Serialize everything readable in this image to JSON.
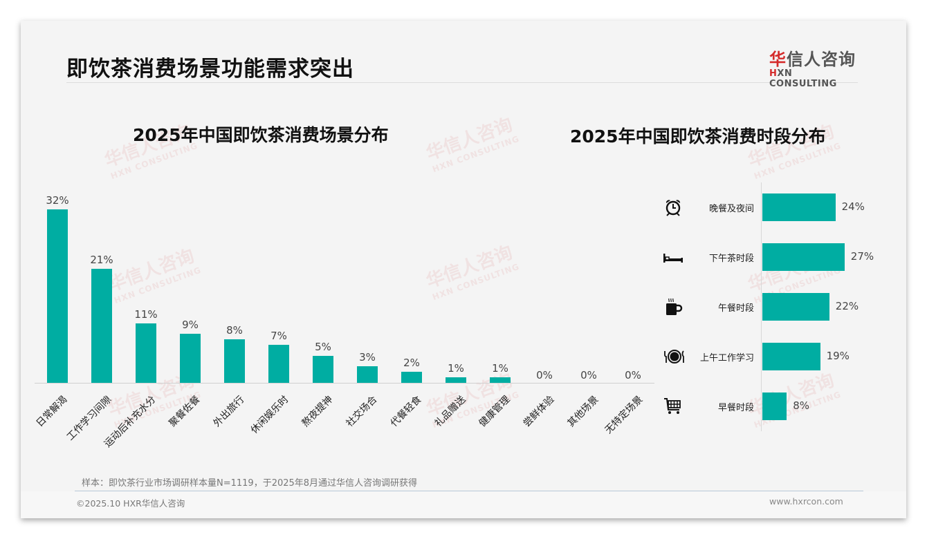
{
  "page": {
    "title": "即饮茶消费场景功能需求突出",
    "logo": {
      "cn_red": "华",
      "cn_rest": "信人咨询",
      "en_red": "H",
      "en_rest": "XN CONSULTING"
    },
    "watermark": {
      "cn": "华信人咨询",
      "en": "HXN CONSULTING"
    },
    "sample_note": "样本：即饮茶行业市场调研样本量N=1119，于2025年8月通过华信人咨询调研获得",
    "copyright": "©2025.10 HXR华信人咨询",
    "website": "www.hxrcon.com",
    "accent_color": "#00ada2"
  },
  "chart_data": [
    {
      "type": "bar",
      "title": "2025年中国即饮茶消费场景分布",
      "xlabel": "",
      "ylabel": "",
      "grid": false,
      "legend": "none",
      "ylim": [
        0,
        35
      ],
      "categories": [
        "日常解渴",
        "工作学习间隙",
        "运动后补充水分",
        "聚餐佐餐",
        "外出旅行",
        "休闲娱乐时",
        "熬夜提神",
        "社交场合",
        "代餐轻食",
        "礼品赠送",
        "健康管理",
        "尝鲜体验",
        "其他场景",
        "无特定场景"
      ],
      "values": [
        32,
        21,
        11,
        9,
        8,
        7,
        5,
        3,
        2,
        1,
        1,
        0,
        0,
        0
      ],
      "value_labels": [
        "32%",
        "21%",
        "11%",
        "9%",
        "8%",
        "7%",
        "5%",
        "3%",
        "2%",
        "1%",
        "1%",
        "0%",
        "0%",
        "0%"
      ],
      "color": "#00ada2"
    },
    {
      "type": "bar",
      "orientation": "horizontal",
      "title": "2025年中国即饮茶消费时段分布",
      "xlabel": "",
      "ylabel": "",
      "grid": false,
      "legend": "none",
      "xlim": [
        0,
        30
      ],
      "categories": [
        "晚餐及夜间",
        "下午茶时段",
        "午餐时段",
        "上午工作学习",
        "早餐时段"
      ],
      "icons": [
        "alarm-clock-icon",
        "bed-icon",
        "coffee-mug-icon",
        "plate-cutlery-icon",
        "shopping-cart-icon"
      ],
      "values": [
        24,
        27,
        22,
        19,
        8
      ],
      "value_labels": [
        "24%",
        "27%",
        "22%",
        "19%",
        "8%"
      ],
      "color": "#00ada2"
    }
  ]
}
